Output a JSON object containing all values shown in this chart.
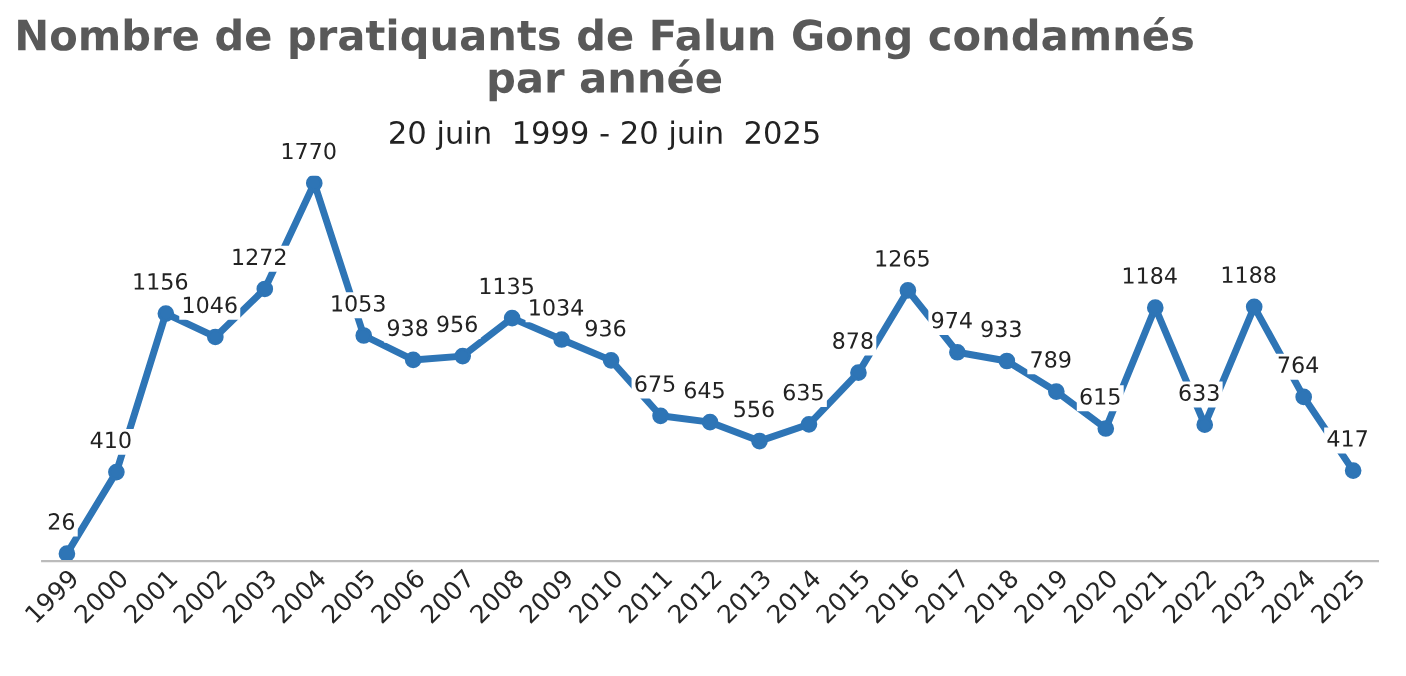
{
  "chart_data": {
    "type": "line",
    "title": "Nombre de pratiquants de Falun Gong condamnés\npar année",
    "subtitle": "20 juin  1999 - 20 juin  2025",
    "categories": [
      "1999",
      "2000",
      "2001",
      "2002",
      "2003",
      "2004",
      "2005",
      "2006",
      "2007",
      "2008",
      "2009",
      "2010",
      "2011",
      "2012",
      "2013",
      "2014",
      "2015",
      "2016",
      "2017",
      "2018",
      "2019",
      "2020",
      "2021",
      "2022",
      "2023",
      "2024",
      "2025"
    ],
    "series": [
      {
        "color": "#2e75b6",
        "values": [
          26,
          410,
          1156,
          1046,
          1272,
          1770,
          1053,
          938,
          956,
          1135,
          1034,
          936,
          675,
          645,
          556,
          635,
          878,
          1265,
          974,
          933,
          789,
          615,
          1184,
          633,
          1188,
          764,
          417
        ]
      }
    ],
    "data_labels": true,
    "marker": "circle",
    "line_style": "solid",
    "grid": false,
    "legend": false
  }
}
